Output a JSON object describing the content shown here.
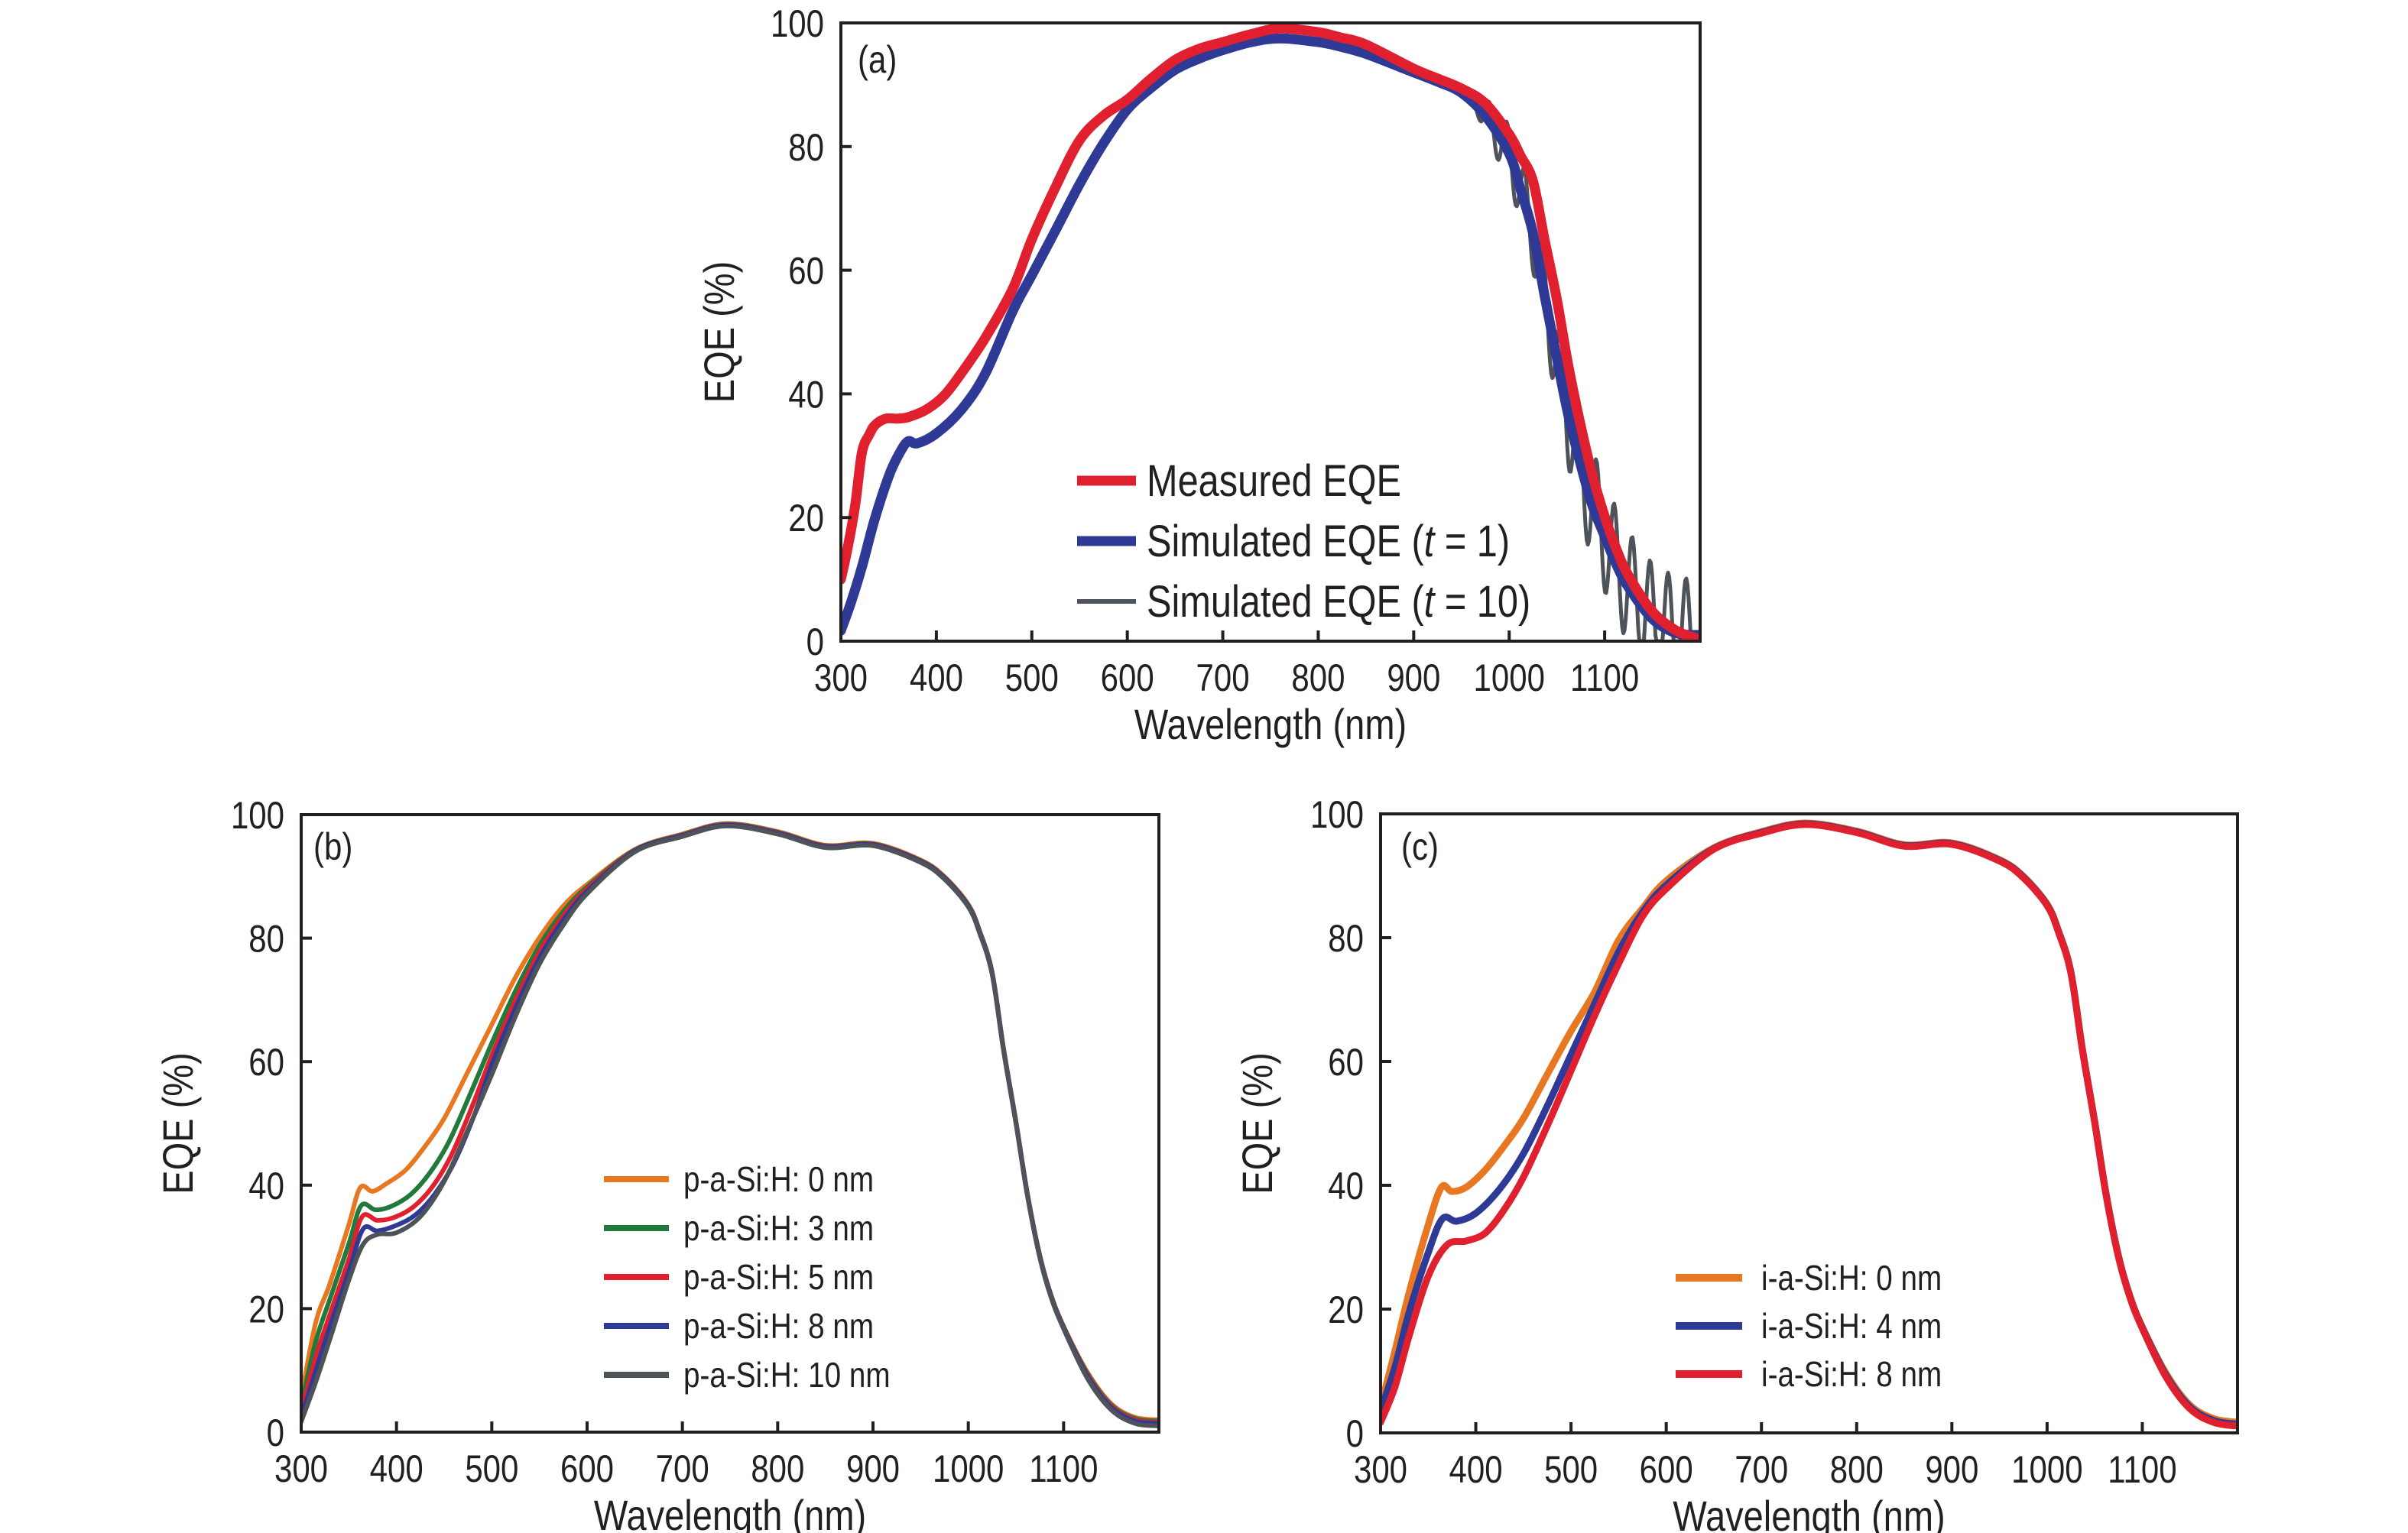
{
  "figure": {
    "panels_order": [
      "a",
      "b",
      "c"
    ]
  },
  "chart_data": [
    {
      "id": "a",
      "type": "line",
      "panel_label": "(a)",
      "title": "",
      "xlabel": "Wavelength (nm)",
      "ylabel": "EQE (%)",
      "xlim": [
        300,
        1200
      ],
      "ylim": [
        0,
        100
      ],
      "xticks": [
        300,
        400,
        500,
        600,
        700,
        800,
        900,
        1000,
        1100
      ],
      "xtick_labels": [
        "300",
        "400",
        "500",
        "600",
        "700",
        "800",
        "900",
        "1000",
        "1100"
      ],
      "yticks": [
        0,
        20,
        40,
        60,
        80,
        100
      ],
      "ytick_labels": [
        "0",
        "20",
        "40",
        "60",
        "80",
        "100"
      ],
      "grid": false,
      "legend_position": "bottom-center",
      "series": [
        {
          "name": "Measured EQE",
          "legend_parts": [
            "Measured EQE"
          ],
          "color": "#e0202e",
          "weight": "thick",
          "x": [
            300,
            307,
            315,
            322,
            330,
            336,
            347,
            360,
            372,
            390,
            408,
            426,
            451,
            480,
            500,
            525,
            550,
            575,
            600,
            625,
            650,
            675,
            700,
            730,
            760,
            800,
            822,
            850,
            900,
            925,
            950,
            975,
            1000,
            1012,
            1025,
            1037,
            1050,
            1062,
            1075,
            1087,
            1100,
            1112,
            1125,
            1150,
            1175,
            1200
          ],
          "y": [
            10,
            15,
            22,
            30.5,
            33.5,
            35,
            36,
            36,
            36.3,
            37.5,
            39.7,
            43.3,
            49,
            57,
            65,
            73.5,
            81,
            85,
            87.6,
            91,
            94,
            95.8,
            96.9,
            98.2,
            99.1,
            98.5,
            97.7,
            96.5,
            92.6,
            91,
            89.4,
            87,
            82,
            78.5,
            74.4,
            65,
            55.2,
            44.5,
            34.8,
            27,
            20.2,
            15,
            10.6,
            4.8,
            1.7,
            0.3
          ]
        },
        {
          "name": "Simulated EQE (t = 1)",
          "legend_parts": [
            "Simulated EQE (",
            "t",
            " = 1)"
          ],
          "color": "#2e3a96",
          "weight": "thick",
          "x": [
            300,
            310,
            322,
            335,
            350,
            360,
            370,
            380,
            400,
            426,
            451,
            480,
            500,
            525,
            550,
            575,
            600,
            625,
            650,
            675,
            700,
            730,
            760,
            800,
            822,
            850,
            900,
            925,
            950,
            975,
            1000,
            1012,
            1025,
            1037,
            1050,
            1062,
            1075,
            1087,
            1100,
            1112,
            1125,
            1150,
            1175,
            1200
          ],
          "y": [
            1.7,
            6,
            12,
            19.5,
            26.6,
            30,
            32.3,
            32,
            33.6,
            37.4,
            43.2,
            53.4,
            59.2,
            66.5,
            73.9,
            80.5,
            86,
            89.5,
            92.4,
            94.2,
            95.6,
            96.9,
            97.5,
            96.9,
            96.2,
            95,
            92,
            90.5,
            88.7,
            85,
            78.9,
            73,
            66,
            56,
            45.7,
            36.5,
            28.5,
            22,
            17,
            12.5,
            8.7,
            3.6,
            1.3,
            1.0
          ]
        },
        {
          "name": "Simulated EQE (t = 10)",
          "legend_parts": [
            "Simulated EQE (",
            "t",
            " = 10)"
          ],
          "color": "#4d5358",
          "weight": "thin",
          "derived_from": "Simulated EQE (t = 1)",
          "oscillation": {
            "start_nm": 955,
            "period_nm": 18.8,
            "amplitude_start": 2,
            "amplitude_end": 9
          },
          "note_values": "follows t = 1 curve with interference fringes above ~955 nm, clipped at 0"
        }
      ]
    },
    {
      "id": "b",
      "type": "line",
      "panel_label": "(b)",
      "title": "",
      "xlabel": "Wavelength (nm)",
      "ylabel": "EQE (%)",
      "xlim": [
        300,
        1200
      ],
      "ylim": [
        0,
        100
      ],
      "xticks": [
        300,
        400,
        500,
        600,
        700,
        800,
        900,
        1000,
        1100
      ],
      "xtick_labels": [
        "300",
        "400",
        "500",
        "600",
        "700",
        "800",
        "900",
        "1000",
        "1100"
      ],
      "yticks": [
        0,
        20,
        40,
        60,
        80,
        100
      ],
      "ytick_labels": [
        "0",
        "20",
        "40",
        "60",
        "80",
        "100"
      ],
      "grid": false,
      "legend_position": "bottom-center",
      "shared_tail": {
        "x": [
          650,
          700,
          746,
          800,
          850,
          900,
          950,
          975,
          1000,
          1012,
          1025,
          1037,
          1050,
          1062,
          1075,
          1087,
          1100,
          1125,
          1150,
          1175,
          1200
        ],
        "y": [
          94.2,
          96.7,
          98.4,
          97.1,
          94.9,
          95.2,
          92.5,
          89.8,
          85.3,
          81,
          74.4,
          62,
          50.2,
          38.5,
          28.5,
          22,
          17,
          9.3,
          4.2,
          2.0,
          1.6
        ]
      },
      "series": [
        {
          "name": "p-a-Si:H: 0 nm",
          "color": "#e87722",
          "x": [
            300,
            315,
            330,
            350,
            362,
            375,
            390,
            410,
            430,
            450,
            475,
            500,
            525,
            550,
            575,
            600
          ],
          "y": [
            5.5,
            17.6,
            24,
            33.6,
            39.6,
            39,
            40.3,
            42.5,
            46.3,
            50.8,
            58.4,
            66,
            73.7,
            80.1,
            85.2,
            88.7
          ]
        },
        {
          "name": "p-a-Si:H: 3 nm",
          "color": "#217a3c",
          "x": [
            300,
            315,
            330,
            350,
            363,
            378,
            395,
            415,
            435,
            455,
            478,
            500,
            525,
            550,
            575,
            600
          ],
          "y": [
            4.3,
            14.5,
            21.5,
            30.5,
            36.7,
            36,
            36.6,
            38.5,
            42,
            47,
            55,
            63,
            71.5,
            78.8,
            84.3,
            88.3
          ]
        },
        {
          "name": "p-a-Si:H: 5 nm",
          "color": "#e0202e",
          "x": [
            300,
            315,
            330,
            350,
            364,
            380,
            398,
            418,
            438,
            458,
            480,
            500,
            525,
            550,
            575,
            600
          ],
          "y": [
            3.3,
            12,
            19,
            28,
            34.9,
            34.3,
            34.8,
            36.5,
            39.8,
            45,
            53,
            61,
            70,
            77.8,
            83.6,
            88
          ]
        },
        {
          "name": "p-a-Si:H: 8 nm",
          "color": "#2e3a96",
          "x": [
            300,
            315,
            330,
            350,
            365,
            380,
            400,
            420,
            440,
            460,
            482,
            500,
            525,
            550,
            575,
            600
          ],
          "y": [
            2.4,
            9.8,
            17,
            26,
            32.9,
            32.6,
            33.5,
            35.2,
            38.5,
            43.5,
            51.5,
            59.5,
            68.7,
            76.8,
            82.9,
            87.6
          ]
        },
        {
          "name": "p-a-Si:H: 10 nm",
          "color": "#4d5358",
          "x": [
            300,
            315,
            330,
            350,
            365,
            380,
            400,
            425,
            450,
            475,
            500,
            525,
            550,
            575,
            600
          ],
          "y": [
            1.7,
            8,
            15,
            24.6,
            30.4,
            32,
            32.3,
            34.9,
            40.6,
            49,
            57.9,
            67.4,
            75.8,
            82.1,
            87.2
          ]
        }
      ],
      "tail_offsets": [
        0.4,
        0.2,
        0,
        -0.2,
        -0.6
      ]
    },
    {
      "id": "c",
      "type": "line",
      "panel_label": "(c)",
      "title": "",
      "xlabel": "Wavelength (nm)",
      "ylabel": "EQE (%)",
      "xlim": [
        300,
        1200
      ],
      "ylim": [
        0,
        100
      ],
      "xticks": [
        300,
        400,
        500,
        600,
        700,
        800,
        900,
        1000,
        1100
      ],
      "xtick_labels": [
        "300",
        "400",
        "500",
        "600",
        "700",
        "800",
        "900",
        "1000",
        "1100"
      ],
      "yticks": [
        0,
        20,
        40,
        60,
        80,
        100
      ],
      "ytick_labels": [
        "0",
        "20",
        "40",
        "60",
        "80",
        "100"
      ],
      "grid": false,
      "legend_position": "bottom-center",
      "shared_tail": {
        "x": [
          650,
          700,
          746,
          800,
          850,
          900,
          950,
          975,
          1000,
          1012,
          1025,
          1037,
          1050,
          1062,
          1075,
          1087,
          1100,
          1125,
          1150,
          1175,
          1200
        ],
        "y": [
          94.4,
          97,
          98.4,
          97.1,
          94.9,
          95.2,
          92.5,
          89.8,
          85.3,
          81,
          74.4,
          62,
          50.2,
          38.5,
          28.5,
          22,
          17,
          9.3,
          4.2,
          2.0,
          1.4
        ]
      },
      "series": [
        {
          "name": "i-a-Si:H: 0 nm",
          "color": "#e87722",
          "x": [
            300,
            315,
            330,
            350,
            364,
            375,
            390,
            410,
            430,
            450,
            475,
            500,
            525,
            550,
            575,
            600
          ],
          "y": [
            4.2,
            13.2,
            22.7,
            33.6,
            39.7,
            39,
            39.7,
            42.5,
            46.4,
            50.8,
            57.9,
            64.9,
            71.3,
            79.6,
            84.7,
            89.2
          ]
        },
        {
          "name": "i-a-Si:H: 4 nm",
          "color": "#2e3a96",
          "x": [
            300,
            315,
            330,
            350,
            365,
            380,
            400,
            425,
            450,
            475,
            500,
            525,
            550,
            575,
            600
          ],
          "y": [
            3.6,
            10.6,
            19.5,
            29.1,
            34.6,
            34.2,
            35.5,
            39.4,
            45.1,
            52.8,
            61.1,
            69.4,
            77.7,
            84.1,
            88.5
          ]
        },
        {
          "name": "i-a-Si:H: 8 nm",
          "color": "#e0202e",
          "x": [
            300,
            315,
            330,
            350,
            370,
            390,
            410,
            430,
            450,
            475,
            500,
            525,
            550,
            575,
            600
          ],
          "y": [
            1.7,
            7.4,
            15.7,
            25.3,
            30.4,
            31,
            32.3,
            36.1,
            41.3,
            49.6,
            58.5,
            67.5,
            75.8,
            83.4,
            87.9
          ]
        }
      ],
      "tail_offsets": [
        0.3,
        0,
        -0.3
      ]
    }
  ]
}
